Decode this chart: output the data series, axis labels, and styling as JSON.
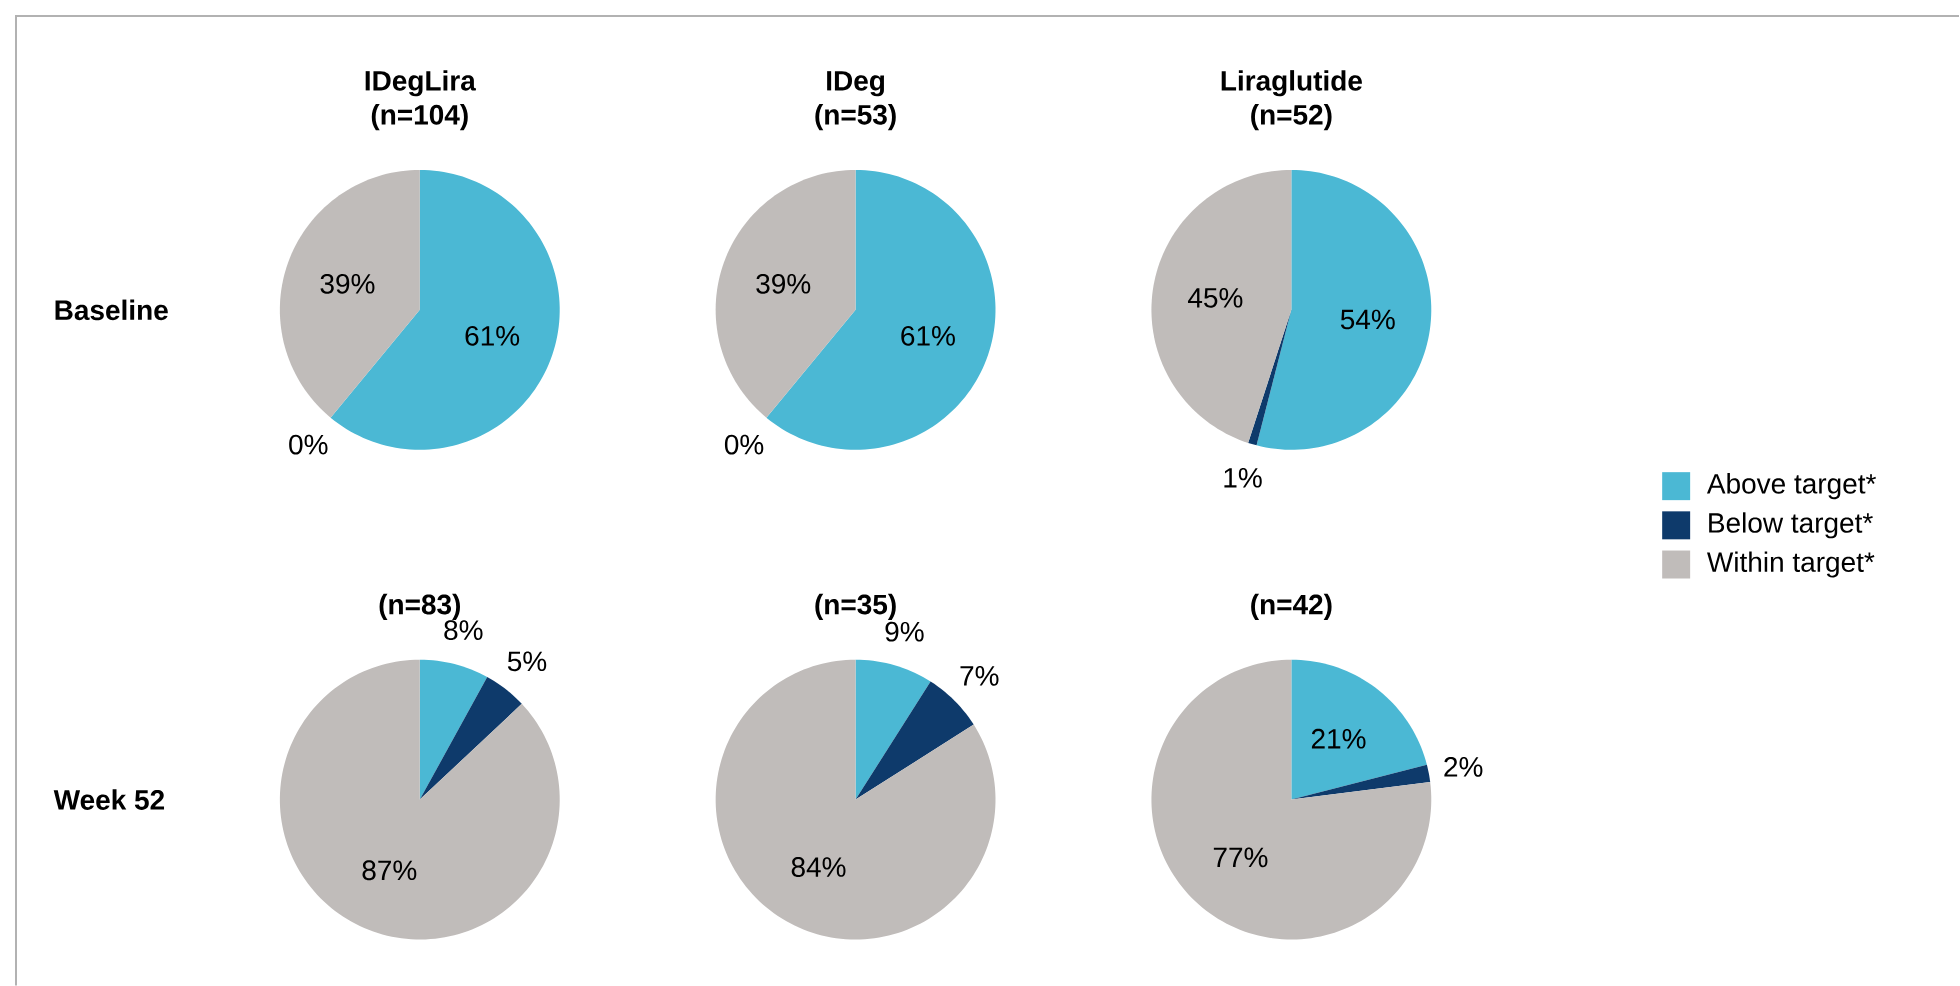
{
  "chart_data": [
    {
      "type": "pie",
      "title": "IDegLira",
      "subtitle": "(n=104)",
      "ylabel": "Baseline",
      "categories": [
        null,
        null,
        null
      ],
      "values": [
        61,
        0,
        39
      ],
      "colors": [
        "#4bb8d4",
        "#0e3a6b",
        "#c0bcba"
      ],
      "value_labels": [
        "61%",
        "0%",
        "39%"
      ]
    },
    {
      "type": "pie",
      "title": "IDeg",
      "subtitle": "(n=53)",
      "categories": [
        null,
        null,
        null
      ],
      "values": [
        61,
        0,
        39
      ],
      "colors": [
        "#4bb8d4",
        "#0e3a6b",
        "#c0bcba"
      ],
      "value_labels": [
        "61%",
        "0%",
        "39%"
      ]
    },
    {
      "type": "pie",
      "title": "Liraglutide",
      "subtitle": "(n=52)",
      "categories": [
        "Above target*",
        "Below target*",
        "Within target*"
      ],
      "values": [
        54,
        1,
        45
      ],
      "colors": [
        "#4bb8d4",
        "#0e3a6b",
        "#c0bcba"
      ],
      "value_labels": [
        "54%",
        "1%",
        "45%"
      ],
      "legend": "right"
    },
    {
      "type": "pie",
      "title": "(n=83)",
      "ylabel": "Week 52",
      "categories": [
        null,
        null,
        null
      ],
      "values": [
        8,
        5,
        87
      ],
      "colors": [
        "#4bb8d4",
        "#0e3a6b",
        "#c0bcba"
      ],
      "value_labels": [
        "8%",
        "5%",
        "87%"
      ]
    },
    {
      "type": "pie",
      "title": "(n=35)",
      "categories": [
        null,
        null,
        null
      ],
      "values": [
        9,
        7,
        84
      ],
      "colors": [
        "#4bb8d4",
        "#0e3a6b",
        "#c0bcba"
      ],
      "value_labels": [
        "9%",
        "7%",
        "84%"
      ]
    },
    {
      "type": "pie",
      "title": "(n=42)",
      "categories": [
        null,
        null,
        null
      ],
      "values": [
        21,
        2,
        77
      ],
      "colors": [
        "#4bb8d4",
        "#0e3a6b",
        "#c0bcba"
      ],
      "value_labels": [
        "21%",
        "2%",
        "77%"
      ]
    }
  ]
}
